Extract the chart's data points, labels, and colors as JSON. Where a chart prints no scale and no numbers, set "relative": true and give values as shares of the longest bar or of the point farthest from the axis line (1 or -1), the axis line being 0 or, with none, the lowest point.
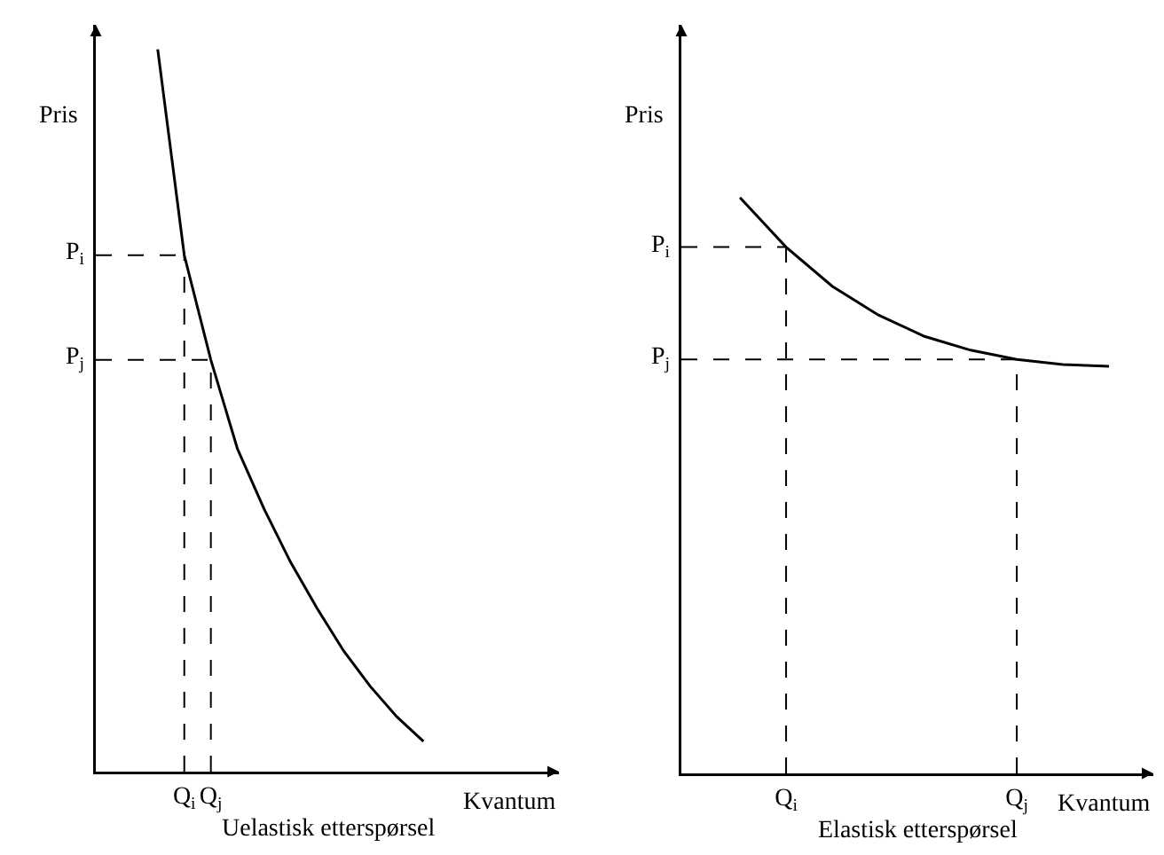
{
  "chart_data": [
    {
      "type": "line",
      "relative": true,
      "xlabel": "Kvantum",
      "ylabel": "Pris",
      "color": "#000000",
      "categories": [
        null,
        "Q$_{i}$",
        "Q$_{j}$",
        null,
        null,
        null,
        null,
        null,
        null,
        null,
        null
      ],
      "values": [
        1.0,
        0.715,
        0.57,
        0.447,
        0.364,
        0.29,
        0.226,
        0.167,
        0.118,
        0.076,
        0.042
      ],
      "annotations": [
        "P$_{i}$",
        "P$_{j}$",
        "Uelastisk etterspørsel"
      ]
    },
    {
      "type": "line",
      "relative": true,
      "xlabel": "Kvantum",
      "ylabel": "Pris",
      "color": "#000000",
      "categories": [
        null,
        "Q$_{i}$",
        null,
        null,
        null,
        null,
        "Q$_{j}$",
        null,
        null
      ],
      "values": [
        1.0,
        0.914,
        0.846,
        0.796,
        0.759,
        0.735,
        0.719,
        0.71,
        0.707
      ],
      "annotations": [
        "P$_{i}$",
        "P$_{j}$",
        "Elastisk etterspørsel"
      ]
    }
  ]
}
